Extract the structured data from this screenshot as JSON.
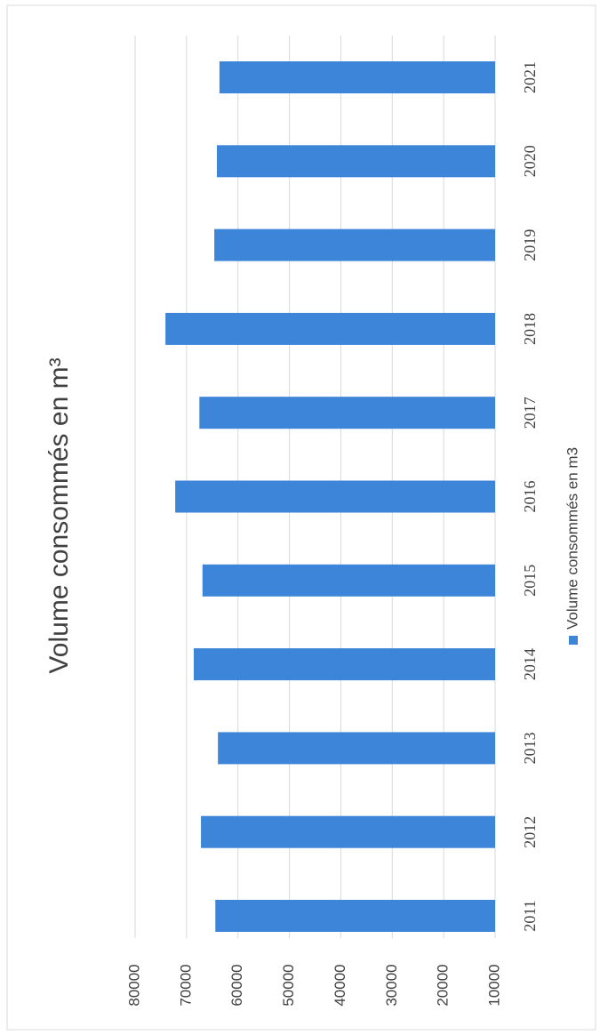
{
  "chart_data": {
    "type": "bar",
    "orientation": "rotated-90",
    "title": "Volume consommés en m³",
    "categories": [
      "2011",
      "2012",
      "2013",
      "2014",
      "2015",
      "2016",
      "2017",
      "2018",
      "2019",
      "2020",
      "2021"
    ],
    "series": [
      {
        "name": "Volume consommés en m3",
        "color": "#3d85d8",
        "values": [
          64400,
          67200,
          63900,
          68600,
          66900,
          72200,
          67500,
          74100,
          64600,
          64100,
          63600
        ]
      }
    ],
    "ylim": [
      10000,
      80000
    ],
    "yticks": [
      10000,
      20000,
      30000,
      40000,
      50000,
      60000,
      70000,
      80000
    ],
    "grid": true
  }
}
